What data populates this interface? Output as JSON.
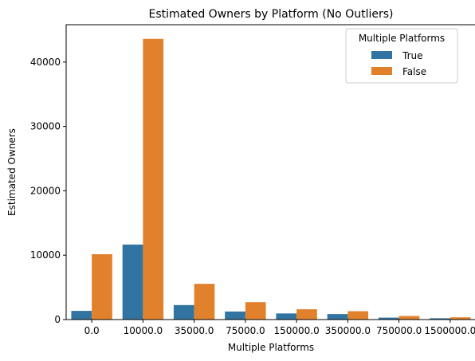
{
  "chart_data": {
    "type": "bar",
    "title": "Estimated Owners by Platform (No Outliers)",
    "xlabel": "Multiple Platforms",
    "ylabel": "Estimated Owners",
    "categories": [
      "0.0",
      "10000.0",
      "35000.0",
      "75000.0",
      "150000.0",
      "350000.0",
      "750000.0",
      "1500000.0"
    ],
    "series": [
      {
        "name": "True",
        "color": "#3274a1",
        "values": [
          1350,
          11650,
          2250,
          1250,
          950,
          850,
          300,
          200
        ]
      },
      {
        "name": "False",
        "color": "#e1812c",
        "values": [
          10150,
          43600,
          5550,
          2700,
          1600,
          1300,
          550,
          350
        ]
      }
    ],
    "ylim": [
      0,
      45800
    ],
    "yticks": [
      0,
      10000,
      20000,
      30000,
      40000
    ],
    "legend": {
      "title": "Multiple Platforms",
      "placement": "top-right"
    },
    "grid": false
  }
}
